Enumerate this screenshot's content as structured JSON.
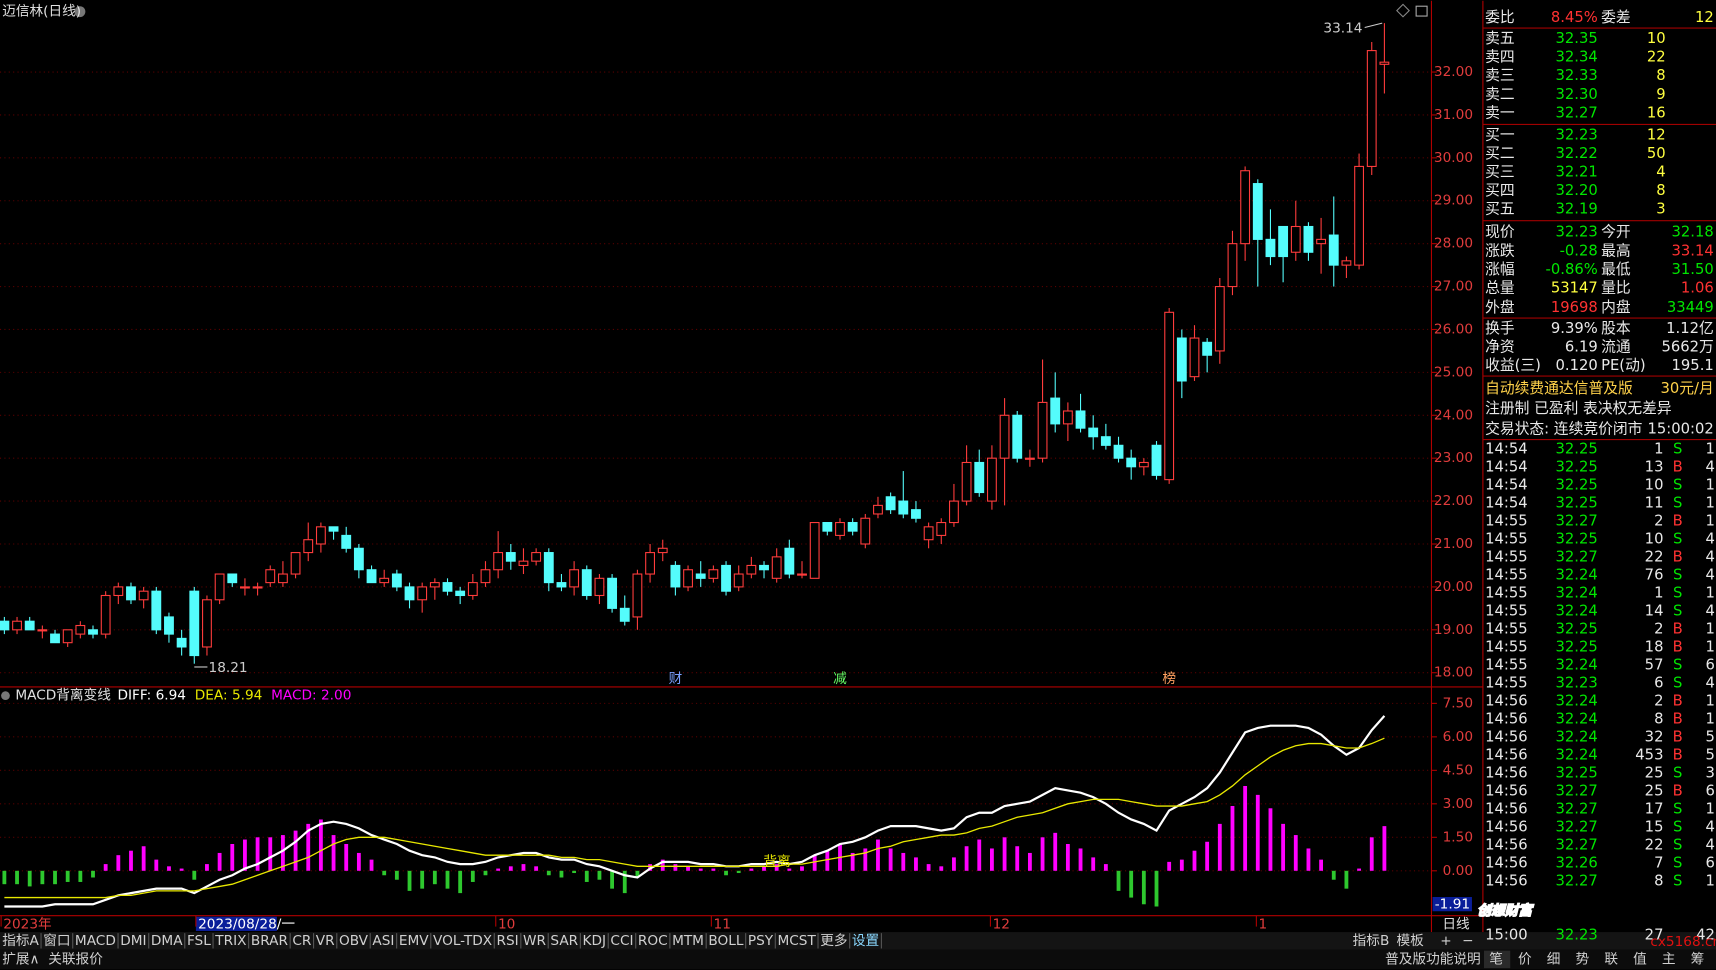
{
  "header": {
    "title": "迈信林(日线)"
  },
  "chart_data": [
    {
      "type": "candlestick",
      "up_color": "#ff3c3c",
      "down_color": "#54fcfc",
      "grid": true,
      "ylim": [
        17.72,
        33.56
      ],
      "yticks": [
        {
          "value": 18,
          "label": "18.00"
        },
        {
          "value": 19,
          "label": "19.00"
        },
        {
          "value": 20,
          "label": "20.00"
        },
        {
          "value": 21,
          "label": "21.00"
        },
        {
          "value": 22,
          "label": "22.00"
        },
        {
          "value": 23,
          "label": "23.00"
        },
        {
          "value": 24,
          "label": "24.00"
        },
        {
          "value": 25,
          "label": "25.00"
        },
        {
          "value": 26,
          "label": "26.00"
        },
        {
          "value": 27,
          "label": "27.00"
        },
        {
          "value": 28,
          "label": "28.00"
        },
        {
          "value": 29,
          "label": "29.00"
        },
        {
          "value": 30,
          "label": "30.00"
        },
        {
          "value": 31,
          "label": "31.00"
        },
        {
          "value": 32,
          "label": "32.00"
        }
      ],
      "x_labels": [
        "2023年",
        "2023/08/28/一",
        "10",
        "11",
        "12",
        "1"
      ],
      "markers": [
        "财",
        "减",
        "榜"
      ],
      "open": [
        19.2,
        19.0,
        19.2,
        19.0,
        18.9,
        18.7,
        18.9,
        19.0,
        18.9,
        19.8,
        20.0,
        19.7,
        19.9,
        19.3,
        18.8,
        19.9,
        18.6,
        19.7,
        20.3,
        20.0,
        20.0,
        20.1,
        20.1,
        20.3,
        20.8,
        21.0,
        21.4,
        21.2,
        20.9,
        20.4,
        20.1,
        20.3,
        20.0,
        19.7,
        20.0,
        20.1,
        19.9,
        19.8,
        20.1,
        20.4,
        20.8,
        20.5,
        20.6,
        20.8,
        20.1,
        20.0,
        20.4,
        19.8,
        20.2,
        19.5,
        19.3,
        20.3,
        20.8,
        20.5,
        20.0,
        20.3,
        20.2,
        20.5,
        20.0,
        20.3,
        20.5,
        20.2,
        20.9,
        20.3,
        20.2,
        21.5,
        21.2,
        21.5,
        21.0,
        21.7,
        22.1,
        22.0,
        21.8,
        21.1,
        21.2,
        21.5,
        22.0,
        22.9,
        22.0,
        23.0,
        24.0,
        23.0,
        23.0,
        24.4,
        23.8,
        24.1,
        23.7,
        23.5,
        23.3,
        23.0,
        22.8,
        23.3,
        22.5,
        25.8,
        24.9,
        25.7,
        25.5,
        27.0,
        28.0,
        29.4,
        28.1,
        28.4,
        27.8,
        28.4,
        28.0,
        28.2,
        27.5,
        27.5,
        29.8,
        32.18
      ],
      "high": [
        19.3,
        19.3,
        19.3,
        19.1,
        19.0,
        19.0,
        19.2,
        19.1,
        19.9,
        20.1,
        20.1,
        20.0,
        20.0,
        19.4,
        19.0,
        20.0,
        19.8,
        20.3,
        20.3,
        20.2,
        20.1,
        20.5,
        20.6,
        20.8,
        21.5,
        21.5,
        21.4,
        21.4,
        21.0,
        20.5,
        20.4,
        20.4,
        20.1,
        20.1,
        20.2,
        20.2,
        20.0,
        20.3,
        20.6,
        21.3,
        21.0,
        20.9,
        20.9,
        20.9,
        20.3,
        20.6,
        20.5,
        20.3,
        20.3,
        19.8,
        20.4,
        21.0,
        21.1,
        20.6,
        20.5,
        20.6,
        20.5,
        20.6,
        20.5,
        20.7,
        20.6,
        20.9,
        21.1,
        20.6,
        21.5,
        21.5,
        21.6,
        21.6,
        21.7,
        22.1,
        22.2,
        22.7,
        22.0,
        21.5,
        21.6,
        22.4,
        23.3,
        23.2,
        23.3,
        24.4,
        24.1,
        23.2,
        25.3,
        25.0,
        24.3,
        24.5,
        24.0,
        23.8,
        23.5,
        23.2,
        23.0,
        23.4,
        26.5,
        26.0,
        26.1,
        25.8,
        27.2,
        28.3,
        29.8,
        29.5,
        28.8,
        28.4,
        29.0,
        28.5,
        28.6,
        29.1,
        27.7,
        30.1,
        32.7,
        33.14
      ],
      "low": [
        18.9,
        18.9,
        19.0,
        18.8,
        18.7,
        18.6,
        18.8,
        18.8,
        18.8,
        19.6,
        19.6,
        19.5,
        18.9,
        18.7,
        18.4,
        18.21,
        18.4,
        19.6,
        20.0,
        19.8,
        19.8,
        20.0,
        20.0,
        20.2,
        20.6,
        20.8,
        21.1,
        20.8,
        20.2,
        20.1,
        20.0,
        19.9,
        19.5,
        19.4,
        19.7,
        19.8,
        19.6,
        19.7,
        20.0,
        20.2,
        20.4,
        20.3,
        20.5,
        19.9,
        19.9,
        19.8,
        19.7,
        19.6,
        19.4,
        19.1,
        19.0,
        20.1,
        20.6,
        19.8,
        19.9,
        20.0,
        20.1,
        19.8,
        19.9,
        20.2,
        20.2,
        20.1,
        20.2,
        20.2,
        20.2,
        21.2,
        21.1,
        21.2,
        20.9,
        21.6,
        21.7,
        21.6,
        21.5,
        20.9,
        21.0,
        21.4,
        21.9,
        22.1,
        21.8,
        21.9,
        22.9,
        22.8,
        22.9,
        23.6,
        23.4,
        23.6,
        23.2,
        23.2,
        22.9,
        22.5,
        22.6,
        22.5,
        22.4,
        24.4,
        24.8,
        25.0,
        25.2,
        26.8,
        27.6,
        27.0,
        27.5,
        27.1,
        27.6,
        27.6,
        27.3,
        27.0,
        27.2,
        27.4,
        29.6,
        31.5
      ],
      "close": [
        19.0,
        19.2,
        19.0,
        19.0,
        18.7,
        19.0,
        19.1,
        18.9,
        19.8,
        20.0,
        19.7,
        19.9,
        19.0,
        18.9,
        18.6,
        18.4,
        19.7,
        20.3,
        20.1,
        20.0,
        20.0,
        20.4,
        20.3,
        20.8,
        21.1,
        21.4,
        21.3,
        20.9,
        20.4,
        20.1,
        20.2,
        20.0,
        19.7,
        20.0,
        20.1,
        19.9,
        19.8,
        20.1,
        20.4,
        20.8,
        20.6,
        20.6,
        20.8,
        20.1,
        20.0,
        20.4,
        19.8,
        20.2,
        19.5,
        19.2,
        20.3,
        20.8,
        20.9,
        20.0,
        20.4,
        20.2,
        20.4,
        19.9,
        20.3,
        20.5,
        20.4,
        20.7,
        20.3,
        20.3,
        21.5,
        21.3,
        21.5,
        21.3,
        21.6,
        21.9,
        21.8,
        21.7,
        21.6,
        21.4,
        21.5,
        22.0,
        22.9,
        22.2,
        23.0,
        24.0,
        23.0,
        23.0,
        24.3,
        23.8,
        24.1,
        23.7,
        23.5,
        23.3,
        23.0,
        22.8,
        22.9,
        22.6,
        26.4,
        24.8,
        25.8,
        25.4,
        27.0,
        28.0,
        29.7,
        28.1,
        27.7,
        27.7,
        28.4,
        27.8,
        28.1,
        27.5,
        27.6,
        29.8,
        32.5,
        32.23
      ]
    },
    {
      "type": "macd",
      "title": "MACD背离变线",
      "grid": true,
      "ylim": [
        -1.96,
        8.09
      ],
      "yticks": [
        {
          "value": 0,
          "label": "0.00"
        },
        {
          "value": 1.5,
          "label": "1.50"
        },
        {
          "value": 3,
          "label": "3.00"
        },
        {
          "value": 4.5,
          "label": "4.50"
        },
        {
          "value": 6,
          "label": "6.00"
        },
        {
          "value": 7.5,
          "label": "7.50"
        }
      ],
      "readout": {
        "value": -1.91,
        "label": "-1.91"
      },
      "annotations": [
        "背离"
      ],
      "series": [
        {
          "label": "DIFF: 6.94",
          "color": "#ffffff",
          "values": [
            -1.6,
            -1.6,
            -1.6,
            -1.6,
            -1.5,
            -1.5,
            -1.5,
            -1.5,
            -1.3,
            -1.1,
            -1.0,
            -0.9,
            -0.8,
            -0.8,
            -0.8,
            -1.0,
            -0.7,
            -0.4,
            -0.2,
            0.1,
            0.3,
            0.6,
            0.9,
            1.3,
            1.8,
            2.1,
            2.2,
            2.1,
            1.9,
            1.6,
            1.4,
            1.2,
            0.9,
            0.7,
            0.6,
            0.4,
            0.3,
            0.3,
            0.4,
            0.6,
            0.7,
            0.8,
            0.8,
            0.6,
            0.5,
            0.5,
            0.3,
            0.2,
            0.0,
            -0.2,
            -0.3,
            0.1,
            0.4,
            0.4,
            0.4,
            0.3,
            0.3,
            0.2,
            0.2,
            0.3,
            0.3,
            0.4,
            0.3,
            0.4,
            0.7,
            0.9,
            1.2,
            1.3,
            1.5,
            1.8,
            2.0,
            2.0,
            2.0,
            1.9,
            1.8,
            1.9,
            2.4,
            2.6,
            2.6,
            2.9,
            3.0,
            3.1,
            3.4,
            3.7,
            3.6,
            3.5,
            3.3,
            3.0,
            2.6,
            2.3,
            2.1,
            1.8,
            2.7,
            3.0,
            3.3,
            3.7,
            4.4,
            5.3,
            6.2,
            6.4,
            6.5,
            6.5,
            6.5,
            6.4,
            6.1,
            5.6,
            5.2,
            5.5,
            6.3,
            6.94
          ]
        },
        {
          "label": "DEA: 5.94",
          "color": "#e8e800",
          "values": [
            -1.2,
            -1.2,
            -1.2,
            -1.2,
            -1.2,
            -1.2,
            -1.2,
            -1.2,
            -1.2,
            -1.1,
            -1.1,
            -1.0,
            -0.9,
            -0.9,
            -0.9,
            -0.9,
            -0.8,
            -0.7,
            -0.6,
            -0.4,
            -0.2,
            0.0,
            0.2,
            0.4,
            0.6,
            0.9,
            1.2,
            1.4,
            1.5,
            1.5,
            1.5,
            1.4,
            1.3,
            1.2,
            1.1,
            1.0,
            0.9,
            0.8,
            0.7,
            0.7,
            0.7,
            0.7,
            0.7,
            0.7,
            0.6,
            0.6,
            0.5,
            0.5,
            0.4,
            0.3,
            0.2,
            0.2,
            0.2,
            0.2,
            0.2,
            0.2,
            0.2,
            0.2,
            0.2,
            0.2,
            0.2,
            0.2,
            0.3,
            0.3,
            0.4,
            0.5,
            0.6,
            0.7,
            0.8,
            1.0,
            1.1,
            1.3,
            1.4,
            1.5,
            1.6,
            1.6,
            1.7,
            1.9,
            2.0,
            2.2,
            2.4,
            2.5,
            2.6,
            2.8,
            3.0,
            3.1,
            3.2,
            3.2,
            3.2,
            3.1,
            3.0,
            2.9,
            2.9,
            2.9,
            3.0,
            3.1,
            3.4,
            3.8,
            4.3,
            4.7,
            5.1,
            5.4,
            5.6,
            5.7,
            5.7,
            5.6,
            5.5,
            5.5,
            5.7,
            5.94
          ]
        },
        {
          "label": "MACD: 2.00",
          "color": "#ff00ff",
          "negative_color": "#2ec82e",
          "bar": true,
          "values": [
            -0.6,
            -0.6,
            -0.7,
            -0.6,
            -0.6,
            -0.5,
            -0.5,
            -0.3,
            0.3,
            0.7,
            0.9,
            1.1,
            0.5,
            0.2,
            0.1,
            -0.4,
            0.3,
            0.8,
            1.2,
            1.4,
            1.5,
            1.5,
            1.6,
            1.8,
            2.1,
            2.3,
            1.6,
            1.2,
            0.8,
            0.5,
            -0.2,
            -0.4,
            -0.9,
            -0.8,
            -0.6,
            -0.8,
            -1.0,
            -0.5,
            -0.2,
            0.1,
            0.2,
            0.3,
            0.2,
            -0.2,
            -0.3,
            -0.1,
            -0.5,
            -0.4,
            -0.8,
            -1.0,
            -0.3,
            0.3,
            0.5,
            0.3,
            0.2,
            0.1,
            0.1,
            -0.2,
            -0.1,
            0.1,
            0.2,
            0.3,
            0.1,
            0.2,
            0.7,
            0.9,
            1.2,
            0.8,
            1.0,
            1.4,
            1.0,
            0.8,
            0.6,
            0.3,
            0.2,
            0.6,
            1.1,
            1.4,
            1.0,
            1.5,
            1.1,
            0.8,
            1.5,
            1.7,
            1.2,
            1.0,
            0.6,
            0.3,
            -0.9,
            -1.2,
            -1.5,
            -1.6,
            0.4,
            0.5,
            0.9,
            1.3,
            2.1,
            2.9,
            3.8,
            3.4,
            2.8,
            2.1,
            1.6,
            1.0,
            0.5,
            -0.4,
            -0.8,
            0.1,
            1.5,
            2.0
          ]
        }
      ]
    }
  ],
  "quote": {
    "ratio": [
      "委比",
      "8.45%",
      "委差",
      "12"
    ],
    "sell": [
      [
        "卖五",
        "32.35",
        "10"
      ],
      [
        "卖四",
        "32.34",
        "22"
      ],
      [
        "卖三",
        "32.33",
        "8"
      ],
      [
        "卖二",
        "32.30",
        "9"
      ],
      [
        "卖一",
        "32.27",
        "16"
      ]
    ],
    "buy": [
      [
        "买一",
        "32.23",
        "12"
      ],
      [
        "买二",
        "32.22",
        "50"
      ],
      [
        "买三",
        "32.21",
        "4"
      ],
      [
        "买四",
        "32.20",
        "8"
      ],
      [
        "买五",
        "32.19",
        "3"
      ]
    ],
    "info": [
      [
        "现价",
        "32.23",
        "今开",
        "32.18"
      ],
      [
        "涨跌",
        "-0.28",
        "最高",
        "33.14"
      ],
      [
        "涨幅",
        "-0.86%",
        "最低",
        "31.50"
      ],
      [
        "总量",
        "53147",
        "量比",
        "1.06"
      ],
      [
        "外盘",
        "19698",
        "内盘",
        "33449"
      ],
      [
        "换手",
        "9.39%",
        "股本",
        "1.12亿"
      ],
      [
        "净资",
        "6.19",
        "流通",
        "5662万"
      ],
      [
        "收益(三)",
        "0.120",
        "PE(动)",
        "195.1"
      ]
    ],
    "notices": [
      [
        "自动续费通达信普及版",
        "30元/月"
      ],
      [
        "注册制 已盈利 表决权无差异"
      ],
      [
        "交易状态: 连续竞价闭市",
        "15:00:02"
      ]
    ],
    "ticks": [
      [
        "14:54",
        "32.25",
        "1",
        "S",
        "1"
      ],
      [
        "14:54",
        "32.25",
        "13",
        "B",
        "4"
      ],
      [
        "14:54",
        "32.25",
        "10",
        "S",
        "1"
      ],
      [
        "14:54",
        "32.25",
        "11",
        "S",
        "1"
      ],
      [
        "14:55",
        "32.27",
        "2",
        "B",
        "1"
      ],
      [
        "14:55",
        "32.25",
        "10",
        "S",
        "4"
      ],
      [
        "14:55",
        "32.27",
        "22",
        "B",
        "4"
      ],
      [
        "14:55",
        "32.24",
        "76",
        "S",
        "4"
      ],
      [
        "14:55",
        "32.24",
        "1",
        "S",
        "1"
      ],
      [
        "14:55",
        "32.24",
        "14",
        "S",
        "4"
      ],
      [
        "14:55",
        "32.25",
        "2",
        "B",
        "1"
      ],
      [
        "14:55",
        "32.25",
        "18",
        "B",
        "1"
      ],
      [
        "14:55",
        "32.24",
        "57",
        "S",
        "6"
      ],
      [
        "14:55",
        "32.23",
        "6",
        "S",
        "4"
      ],
      [
        "14:56",
        "32.24",
        "2",
        "B",
        "1"
      ],
      [
        "14:56",
        "32.24",
        "8",
        "B",
        "1"
      ],
      [
        "14:56",
        "32.24",
        "32",
        "B",
        "5"
      ],
      [
        "14:56",
        "32.24",
        "453",
        "B",
        "5"
      ],
      [
        "14:56",
        "32.25",
        "25",
        "S",
        "3"
      ],
      [
        "14:56",
        "32.27",
        "25",
        "B",
        "6"
      ],
      [
        "14:56",
        "32.27",
        "17",
        "S",
        "1"
      ],
      [
        "14:56",
        "32.27",
        "15",
        "S",
        "4"
      ],
      [
        "14:56",
        "32.27",
        "22",
        "S",
        "4"
      ],
      [
        "14:56",
        "32.26",
        "7",
        "S",
        "6"
      ],
      [
        "14:56",
        "32.27",
        "8",
        "S",
        "1"
      ]
    ],
    "last_tick": [
      "15:00",
      "32.23",
      "27",
      "42"
    ]
  },
  "toolbar": {
    "left": [
      "指标A",
      "窗口",
      "MACD",
      "DMI",
      "DMA",
      "FSL",
      "TRIX",
      "BRAR",
      "CR",
      "VR",
      "OBV",
      "ASI",
      "EMV",
      "VOL-TDX",
      "RSI",
      "WR",
      "SAR",
      "KDJ",
      "CCI",
      "ROC",
      "MTM",
      "BOLL",
      "PSY",
      "MCST",
      "更多",
      "设置"
    ],
    "right": [
      "指标B",
      "模板",
      "+",
      "−"
    ],
    "period": "日线"
  },
  "statusbar": {
    "left": [
      "扩展∧",
      "关联报价"
    ],
    "help": "普及版功能说明",
    "tabs": [
      "笔",
      "价",
      "细",
      "势",
      "联",
      "值",
      "主",
      "筹"
    ]
  },
  "watermark": {
    "brand": "创想财富",
    "site": "cx5168.cn"
  }
}
